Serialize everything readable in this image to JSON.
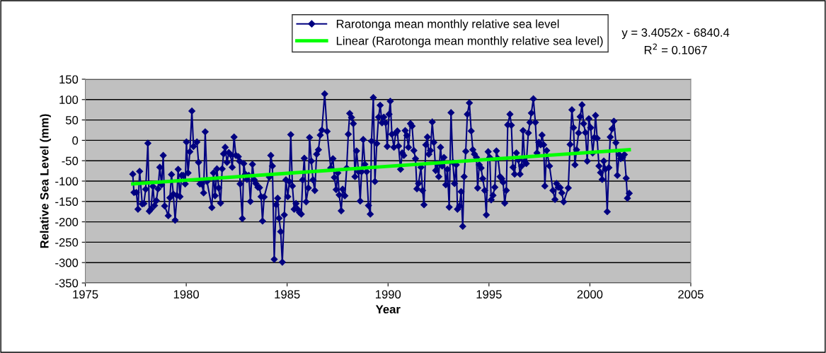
{
  "chart_data": {
    "type": "line",
    "xlabel": "Year",
    "ylabel": "Relative Sea Level (mm)",
    "xlim": [
      1975,
      2005
    ],
    "xticks": [
      1975,
      1980,
      1985,
      1990,
      1995,
      2000,
      2005
    ],
    "ylim": [
      -350,
      150
    ],
    "yticks": [
      -350,
      -300,
      -250,
      -200,
      -150,
      -100,
      -50,
      0,
      50,
      100,
      150
    ],
    "grid": "y",
    "legend": "top",
    "line_style": "solid",
    "annotations": [
      "y = 3.4052x - 6840.4",
      "R$^{2}$ = 0.1067"
    ],
    "series": [
      {
        "name": "Rarotonga mean monthly relative sea level",
        "color": "#000080",
        "marker": "diamond",
        "x": [
          1977.35,
          1977.41,
          1977.53,
          1977.61,
          1977.69,
          1977.82,
          1977.9,
          1977.99,
          1978.1,
          1978.17,
          1978.25,
          1978.35,
          1978.43,
          1978.52,
          1978.6,
          1978.69,
          1978.78,
          1978.86,
          1978.93,
          1979.11,
          1979.19,
          1979.27,
          1979.36,
          1979.45,
          1979.54,
          1979.6,
          1979.69,
          1979.77,
          1979.85,
          1979.95,
          1980.01,
          1980.09,
          1980.18,
          1980.28,
          1980.36,
          1980.53,
          1980.61,
          1980.68,
          1980.77,
          1980.86,
          1980.94,
          1981.03,
          1981.27,
          1981.35,
          1981.43,
          1981.52,
          1981.61,
          1981.7,
          1981.78,
          1981.85,
          1981.93,
          1982.02,
          1982.11,
          1982.2,
          1982.28,
          1982.37,
          1982.46,
          1982.58,
          1982.64,
          1982.67,
          1982.78,
          1982.85,
          1982.93,
          1983.01,
          1983.1,
          1983.18,
          1983.28,
          1983.37,
          1983.45,
          1983.55,
          1983.63,
          1983.71,
          1983.78,
          1983.86,
          1984.12,
          1984.19,
          1984.27,
          1984.36,
          1984.45,
          1984.53,
          1984.6,
          1984.68,
          1984.76,
          1984.86,
          1984.94,
          1985.03,
          1985.11,
          1985.18,
          1985.26,
          1985.35,
          1985.44,
          1985.52,
          1985.61,
          1985.7,
          1985.77,
          1985.85,
          1985.94,
          1986.05,
          1986.11,
          1986.2,
          1986.28,
          1986.37,
          1986.46,
          1986.55,
          1986.64,
          1986.72,
          1986.86,
          1986.98,
          1987.16,
          1987.27,
          1987.34,
          1987.43,
          1987.51,
          1987.58,
          1987.68,
          1987.75,
          1987.86,
          1987.95,
          1988.03,
          1988.1,
          1988.19,
          1988.28,
          1988.36,
          1988.44,
          1988.54,
          1988.62,
          1988.69,
          1988.77,
          1988.85,
          1988.94,
          1989.03,
          1989.12,
          1989.18,
          1989.27,
          1989.35,
          1989.44,
          1989.53,
          1989.61,
          1989.7,
          1989.79,
          1989.88,
          1989.96,
          1990.05,
          1990.11,
          1990.19,
          1990.29,
          1990.38,
          1990.46,
          1990.52,
          1990.62,
          1990.7,
          1990.78,
          1990.85,
          1990.93,
          1991.01,
          1991.11,
          1991.19,
          1991.28,
          1991.36,
          1991.43,
          1991.51,
          1991.63,
          1991.71,
          1991.78,
          1991.87,
          1991.95,
          1992.02,
          1992.1,
          1992.19,
          1992.27,
          1992.36,
          1992.43,
          1992.51,
          1992.6,
          1992.68,
          1992.77,
          1992.86,
          1992.94,
          1993.03,
          1993.12,
          1993.21,
          1993.29,
          1993.38,
          1993.44,
          1993.54,
          1993.62,
          1993.7,
          1993.77,
          1993.85,
          1993.93,
          1994.03,
          1994.12,
          1994.2,
          1994.28,
          1994.38,
          1994.44,
          1994.52,
          1994.61,
          1994.69,
          1994.79,
          1994.87,
          1994.96,
          1995.04,
          1995.11,
          1995.2,
          1995.29,
          1995.37,
          1995.45,
          1995.55,
          1995.63,
          1995.7,
          1995.78,
          1995.86,
          1995.93,
          1996.04,
          1996.11,
          1996.19,
          1996.27,
          1996.36,
          1996.46,
          1996.54,
          1996.62,
          1996.69,
          1996.77,
          1996.85,
          1996.95,
          1997.03,
          1997.1,
          1997.2,
          1997.3,
          1997.38,
          1997.47,
          1997.56,
          1997.63,
          1997.71,
          1997.77,
          1997.86,
          1998.0,
          1998.17,
          1998.27,
          1998.35,
          1998.43,
          1998.53,
          1998.61,
          1998.7,
          1998.93,
          1999.02,
          1999.11,
          1999.19,
          1999.26,
          1999.34,
          1999.44,
          1999.52,
          1999.61,
          1999.69,
          1999.78,
          1999.87,
          1999.95,
          2000.04,
          2000.14,
          2000.22,
          2000.28,
          2000.36,
          2000.45,
          2000.53,
          2000.61,
          2000.69,
          2000.77,
          2000.86,
          2000.94,
          2001.01,
          2001.1,
          2001.19,
          2001.29,
          2001.36,
          2001.45,
          2001.53,
          2001.62,
          2001.71,
          2001.8,
          2001.86,
          2001.95
        ],
        "values": [
          -83,
          -128,
          -128,
          -169,
          -76,
          -156,
          -155,
          -120,
          -7,
          -174,
          -169,
          -113,
          -160,
          -148,
          -119,
          -66,
          -109,
          -37,
          -161,
          -185,
          -141,
          -84,
          -132,
          -196,
          -135,
          -71,
          -138,
          -86,
          -86,
          -107,
          -4,
          -80,
          -28,
          72,
          -15,
          -4,
          -54,
          -107,
          -107,
          -129,
          21,
          -101,
          -165,
          -80,
          -136,
          -70,
          -117,
          -154,
          -70,
          -33,
          -17,
          -54,
          -30,
          -35,
          -66,
          8,
          -37,
          -40,
          -51,
          -107,
          -192,
          -57,
          -83,
          -96,
          -86,
          -150,
          -59,
          -97,
          -106,
          -115,
          -116,
          -138,
          -198,
          -139,
          -90,
          -37,
          -63,
          -292,
          -158,
          -142,
          -191,
          -224,
          -299,
          -183,
          -97,
          -138,
          -101,
          14,
          -112,
          -169,
          -155,
          -169,
          -177,
          -181,
          -97,
          -44,
          -151,
          -117,
          7,
          -51,
          -97,
          -123,
          -34,
          -23,
          13,
          25,
          114,
          22,
          -68,
          -45,
          -91,
          -121,
          -80,
          -134,
          -173,
          -120,
          -136,
          -68,
          15,
          66,
          56,
          41,
          -89,
          -26,
          -77,
          -149,
          -77,
          2,
          -59,
          -77,
          -160,
          -181,
          -2,
          105,
          -101,
          -8,
          57,
          86,
          43,
          57,
          43,
          -15,
          64,
          96,
          15,
          -17,
          18,
          23,
          -14,
          -71,
          -31,
          -37,
          24,
          12,
          -17,
          41,
          35,
          -25,
          -45,
          -119,
          -106,
          -66,
          -123,
          -158,
          -11,
          8,
          -34,
          -25,
          45,
          -5,
          -74,
          -57,
          -89,
          -17,
          -63,
          -42,
          -109,
          -71,
          -164,
          68,
          -54,
          -106,
          -60,
          -169,
          -161,
          -126,
          -211,
          -89,
          -27,
          64,
          92,
          23,
          -23,
          -34,
          -42,
          -117,
          -60,
          -68,
          -94,
          -123,
          -183,
          -28,
          -42,
          -146,
          -135,
          -115,
          -26,
          -45,
          -89,
          -94,
          -103,
          -154,
          -123,
          38,
          64,
          37,
          -66,
          -83,
          -31,
          -48,
          -83,
          -63,
          24,
          -51,
          -57,
          18,
          44,
          67,
          102,
          44,
          -31,
          -5,
          -11,
          13,
          -11,
          -112,
          -25,
          -63,
          -123,
          -145,
          -106,
          -115,
          -116,
          -129,
          -151,
          -117,
          -10,
          75,
          31,
          -60,
          -23,
          18,
          58,
          87,
          41,
          19,
          -51,
          53,
          31,
          -31,
          7,
          61,
          5,
          -63,
          -79,
          -96,
          -51,
          -71,
          -175,
          -67,
          8,
          28,
          47,
          -6,
          -86,
          -35,
          -45,
          -42,
          -35,
          -93,
          -142,
          -130
        ]
      },
      {
        "name": "Linear (Rarotonga mean monthly relative sea level)",
        "color": "#00ff00",
        "marker": "none",
        "x": [
          1977.35,
          2001.95
        ],
        "values": [
          -107,
          -23
        ]
      }
    ]
  }
}
